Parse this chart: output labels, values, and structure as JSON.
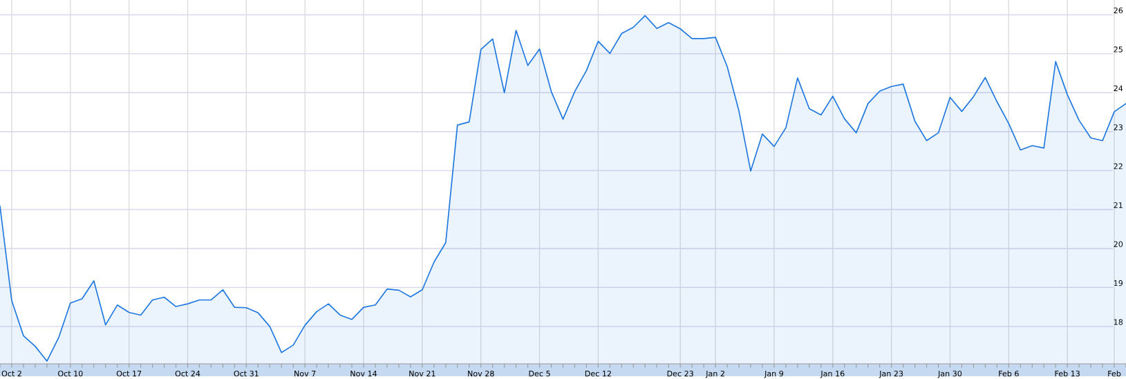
{
  "chart_data": {
    "type": "area",
    "categories": [
      null,
      "Oct 2",
      null,
      null,
      null,
      null,
      "Oct 10",
      null,
      null,
      null,
      null,
      "Oct 17",
      null,
      null,
      null,
      null,
      "Oct 24",
      null,
      null,
      null,
      null,
      "Oct 31",
      null,
      null,
      null,
      null,
      "Nov 7",
      null,
      null,
      null,
      null,
      "Nov 14",
      null,
      null,
      null,
      null,
      "Nov 21",
      null,
      null,
      null,
      null,
      "Nov 28",
      null,
      null,
      null,
      null,
      "Dec 5",
      null,
      null,
      null,
      null,
      "Dec 12",
      null,
      null,
      null,
      null,
      null,
      null,
      "Dec 23",
      null,
      null,
      "Jan 2",
      null,
      null,
      null,
      null,
      "Jan 9",
      null,
      null,
      null,
      null,
      "Jan 16",
      null,
      null,
      null,
      null,
      "Jan 23",
      null,
      null,
      null,
      null,
      "Jan 30",
      null,
      null,
      null,
      null,
      "Feb 6",
      null,
      null,
      null,
      null,
      "Feb 13",
      null,
      null,
      null,
      "Feb",
      null
    ],
    "series": [
      {
        "color": "#1f78e0",
        "values": [
          21.09,
          18.66,
          17.76,
          17.49,
          17.11,
          17.71,
          18.6,
          18.71,
          19.17,
          18.04,
          18.55,
          18.36,
          18.29,
          18.68,
          18.75,
          18.51,
          18.58,
          18.68,
          18.68,
          18.94,
          18.49,
          18.48,
          18.35,
          18.0,
          17.33,
          17.52,
          18.03,
          18.38,
          18.58,
          18.29,
          18.18,
          18.49,
          18.55,
          18.96,
          18.93,
          18.76,
          18.94,
          19.65,
          20.15,
          23.17,
          23.25,
          25.11,
          25.38,
          24.0,
          25.6,
          24.7,
          25.12,
          24.03,
          23.32,
          24.03,
          24.57,
          25.32,
          25.01,
          25.52,
          25.68,
          25.98,
          25.65,
          25.8,
          25.64,
          25.39,
          25.39,
          25.42,
          24.67,
          23.53,
          21.99,
          22.94,
          22.62,
          23.1,
          24.38,
          23.59,
          23.43,
          23.91,
          23.33,
          22.97,
          23.72,
          24.04,
          24.16,
          24.22,
          23.27,
          22.77,
          22.97,
          23.88,
          23.52,
          23.9,
          24.39,
          23.77,
          23.21,
          22.53,
          22.64,
          22.58,
          24.8,
          23.95,
          23.29,
          22.84,
          22.77,
          23.51,
          23.72
        ]
      }
    ],
    "ylim": [
      17.04,
      26.38
    ],
    "yticks": [
      18,
      19,
      20,
      21,
      22,
      23,
      24,
      25,
      26
    ],
    "grid": true
  }
}
